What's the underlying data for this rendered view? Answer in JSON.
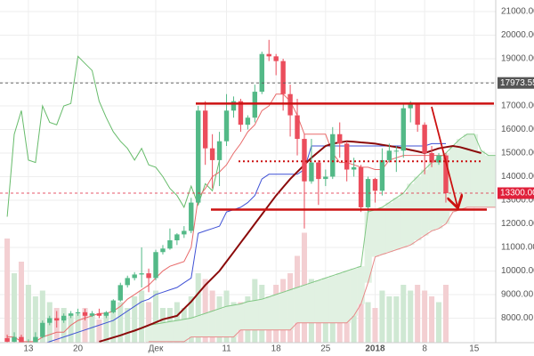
{
  "chart_data": {
    "type": "candlestick",
    "categories": [
      null,
      null,
      null,
      "13",
      null,
      null,
      null,
      null,
      null,
      null,
      "20",
      null,
      null,
      null,
      null,
      null,
      null,
      null,
      null,
      null,
      null,
      "Дек",
      null,
      null,
      null,
      null,
      null,
      null,
      null,
      null,
      null,
      "11",
      null,
      null,
      null,
      null,
      null,
      null,
      "18",
      null,
      null,
      null,
      null,
      null,
      null,
      "25",
      null,
      null,
      null,
      null,
      null,
      null,
      "2018",
      null,
      null,
      null,
      null,
      null,
      null,
      "8",
      null,
      null,
      null,
      null,
      null,
      null,
      "15",
      null,
      null,
      null
    ],
    "open": [
      7150,
      7000,
      7200,
      6500,
      6900,
      7200,
      7800,
      8000,
      7900,
      8100,
      8200,
      8250,
      8100,
      8200,
      8100,
      8250,
      8750,
      9400,
      9700,
      9850,
      9900,
      9700,
      10800,
      10950,
      11300,
      11550,
      11700,
      12900,
      16800,
      15200,
      14700,
      15500,
      16800,
      17200,
      16200,
      16500,
      17600,
      19200,
      19100,
      18900,
      17500,
      16600,
      15600,
      13800,
      14600,
      13900,
      14000,
      15800,
      15400,
      14300,
      14400,
      12700,
      13900,
      13400,
      14700,
      15100,
      15100,
      16900,
      17100,
      16200,
      15000,
      14600,
      14900,
      null,
      null,
      null,
      null,
      null,
      null,
      null
    ],
    "high": [
      7300,
      7400,
      7300,
      7100,
      7400,
      7900,
      8100,
      8300,
      8200,
      8300,
      8400,
      8400,
      8300,
      8400,
      8300,
      8800,
      9500,
      9800,
      9950,
      11000,
      10100,
      10900,
      11100,
      11800,
      11600,
      11900,
      13100,
      17000,
      17200,
      15800,
      15900,
      17500,
      17400,
      17300,
      16600,
      17900,
      19300,
      19800,
      19200,
      19000,
      17900,
      17300,
      15800,
      15600,
      14700,
      14300,
      16100,
      16300,
      15500,
      14800,
      14500,
      14000,
      13950,
      15200,
      15400,
      15300,
      17100,
      17200,
      17100,
      16300,
      15300,
      15000,
      15000,
      null,
      null,
      null,
      null,
      null,
      null,
      null
    ],
    "low": [
      6900,
      6800,
      6000,
      6400,
      6800,
      7150,
      7700,
      7600,
      7800,
      8000,
      8100,
      7900,
      8050,
      8000,
      8000,
      8200,
      8700,
      9300,
      9600,
      9300,
      9100,
      9600,
      10700,
      10900,
      11100,
      11400,
      11600,
      12800,
      14500,
      13500,
      13600,
      15300,
      16500,
      15900,
      16000,
      16300,
      17500,
      18900,
      18300,
      16800,
      15700,
      14900,
      11800,
      13700,
      12800,
      13600,
      13900,
      14800,
      13800,
      14000,
      12500,
      12500,
      12900,
      13200,
      14600,
      14200,
      14800,
      16300,
      15900,
      14100,
      14400,
      14500,
      12900,
      null,
      null,
      null,
      null,
      null,
      null,
      null
    ],
    "close": [
      7000,
      7200,
      6500,
      6900,
      7200,
      7800,
      8000,
      7900,
      8100,
      8200,
      8250,
      8100,
      8200,
      8100,
      8250,
      8750,
      9400,
      9700,
      9850,
      9900,
      9700,
      10800,
      10950,
      11300,
      11550,
      11700,
      12900,
      16800,
      15200,
      14700,
      15500,
      16800,
      17200,
      16200,
      16500,
      17600,
      19200,
      19100,
      18900,
      17500,
      16600,
      15600,
      13800,
      14600,
      13900,
      14000,
      15800,
      15400,
      14300,
      14400,
      12700,
      13900,
      13400,
      14700,
      15100,
      15100,
      16900,
      17100,
      16200,
      15000,
      14600,
      14900,
      13300,
      null,
      null,
      null,
      null,
      null,
      null,
      null
    ],
    "up_color": "#53b987",
    "down_color": "#eb4d5c",
    "volume": {
      "lim": [
        0,
        100
      ],
      "up_color": "#cfe8d3",
      "down_color": "#f3cfd2",
      "values": [
        90,
        60,
        70,
        50,
        40,
        45,
        35,
        30,
        30,
        25,
        25,
        30,
        25,
        20,
        25,
        30,
        35,
        30,
        40,
        45,
        35,
        45,
        30,
        30,
        35,
        30,
        40,
        60,
        55,
        45,
        40,
        45,
        35,
        35,
        40,
        55,
        50,
        40,
        50,
        55,
        60,
        75,
        95,
        55,
        45,
        40,
        50,
        45,
        50,
        55,
        45,
        35,
        30,
        45,
        40,
        40,
        50,
        45,
        50,
        45,
        40,
        35,
        50,
        null,
        null,
        null,
        null,
        null,
        null,
        null
      ]
    },
    "cloud": {
      "fill_up": "#e1f1e2",
      "fill_down": "#f7e1e1",
      "a": {
        "color": "#81c784",
        "values": [
          null,
          null,
          null,
          null,
          null,
          null,
          null,
          null,
          null,
          null,
          null,
          null,
          null,
          null,
          null,
          null,
          null,
          null,
          null,
          null,
          7700,
          7750,
          7800,
          7850,
          7900,
          7950,
          8000,
          8100,
          8200,
          8300,
          8400,
          8500,
          8550,
          8600,
          8700,
          8750,
          8800,
          8900,
          9000,
          9100,
          9200,
          9300,
          9400,
          9500,
          9600,
          9700,
          9800,
          9900,
          10000,
          10100,
          10200,
          12500,
          12600,
          12700,
          12900,
          13100,
          13300,
          13700,
          14000,
          14300,
          14600,
          14800,
          15000,
          15300,
          15600,
          15800,
          15800,
          15100,
          14900,
          14900
        ]
      },
      "b": {
        "color": "#e88a8a",
        "values": [
          null,
          null,
          null,
          null,
          null,
          null,
          null,
          null,
          null,
          null,
          null,
          null,
          null,
          null,
          null,
          null,
          null,
          null,
          null,
          null,
          7000,
          7000,
          7000,
          7000,
          7000,
          7000,
          7200,
          7200,
          7200,
          7200,
          7200,
          7200,
          7200,
          7500,
          7500,
          7500,
          7500,
          7500,
          7500,
          7500,
          7500,
          7800,
          7800,
          7800,
          7800,
          7800,
          7800,
          7800,
          7800,
          8100,
          8600,
          9500,
          10600,
          10700,
          10800,
          10900,
          11000,
          11100,
          11300,
          11500,
          11700,
          11800,
          12000,
          12500,
          12600,
          12700,
          12700,
          12700,
          12700,
          12700
        ]
      }
    },
    "lines": [
      {
        "color": "#66bb6a",
        "values": [
          12300,
          15800,
          16800,
          14700,
          14600,
          17000,
          16300,
          16200,
          17000,
          17100,
          19100,
          18800,
          18500,
          17200,
          16500,
          15900,
          15500,
          15200,
          14700,
          15200,
          14500,
          14400,
          14000,
          13500,
          13200,
          12700,
          13600,
          12800,
          13700,
          13400,
          14700,
          null,
          null,
          null,
          null,
          null,
          null,
          null,
          null,
          null,
          null,
          null,
          null,
          null,
          null,
          null,
          null,
          null,
          null,
          null,
          null,
          null,
          null,
          null,
          null,
          null,
          null,
          null,
          null,
          null,
          null,
          null,
          null,
          null,
          null,
          null,
          null,
          null,
          null,
          null
        ]
      },
      {
        "color": "#3f51d5",
        "values": [
          6900,
          6900,
          6900,
          6900,
          6900,
          6900,
          7000,
          7100,
          7200,
          7300,
          7400,
          7500,
          7600,
          7700,
          7800,
          7900,
          8100,
          8300,
          8500,
          8700,
          8800,
          9000,
          9100,
          9200,
          9300,
          9500,
          9700,
          11600,
          11700,
          11800,
          11900,
          12500,
          12600,
          12700,
          12900,
          13200,
          13900,
          14100,
          14100,
          14100,
          14100,
          14100,
          14300,
          15300,
          15300,
          15300,
          15300,
          15300,
          15300,
          15300,
          15300,
          15300,
          15300,
          15300,
          15300,
          15300,
          15300,
          15300,
          15300,
          15300,
          15400,
          15400,
          15400,
          null,
          null,
          null,
          null,
          null,
          null,
          null
        ]
      },
      {
        "color": "#e86a6a",
        "values": [
          7200,
          7200,
          7000,
          7000,
          7000,
          7200,
          7300,
          7400,
          7400,
          7700,
          7900,
          8000,
          8100,
          8200,
          8200,
          8300,
          8500,
          8800,
          9000,
          9200,
          9400,
          9700,
          10000,
          10200,
          10300,
          10400,
          11000,
          13100,
          13500,
          14000,
          14200,
          14500,
          15000,
          15400,
          15900,
          16200,
          16800,
          17000,
          17500,
          17500,
          17200,
          16600,
          15800,
          15800,
          15800,
          15800,
          15000,
          14600,
          14600,
          14500,
          14400,
          14400,
          14300,
          14300,
          14700,
          14800,
          14900,
          14900,
          14900,
          14900,
          14900,
          14900,
          14900,
          null,
          null,
          null,
          null,
          null,
          null,
          null
        ]
      },
      {
        "color": "#8b0a0a",
        "values": [
          null,
          null,
          null,
          null,
          null,
          null,
          null,
          null,
          null,
          null,
          null,
          null,
          null,
          7000,
          7090,
          7180,
          7270,
          7370,
          7470,
          7580,
          7700,
          7820,
          7950,
          8020,
          8100,
          8400,
          8700,
          9050,
          9400,
          9700,
          10000,
          10400,
          10800,
          11200,
          11600,
          12000,
          12400,
          12800,
          13200,
          13550,
          13900,
          14200,
          14500,
          14800,
          15050,
          15300,
          15400,
          15450,
          15500,
          15480,
          15450,
          15430,
          15400,
          15350,
          15300,
          15250,
          15200,
          15130,
          15070,
          15000,
          15100,
          15200,
          15250,
          15300,
          15250,
          15170,
          15080,
          15000,
          null,
          null
        ]
      }
    ],
    "levels": [
      {
        "value": 17100,
        "style": "solid",
        "color": "#cc1111"
      },
      {
        "value": 12600,
        "style": "solid",
        "color": "#cc1111"
      },
      {
        "value": 14650,
        "style": "dotted",
        "color": "#cc1111"
      }
    ],
    "price_marks": [
      {
        "value": 17973.55,
        "label": "17973.55",
        "color": "#555555"
      },
      {
        "value": 13300,
        "label": "13300.00",
        "color": "#e0203a"
      }
    ],
    "ylim": [
      6960,
      21490
    ],
    "yticks": [
      {
        "value": 8000,
        "label": "8000.00"
      },
      {
        "value": 9000,
        "label": "9000.00"
      },
      {
        "value": 10000,
        "label": "10000.00"
      },
      {
        "value": 11000,
        "label": "11000.00"
      },
      {
        "value": 12000,
        "label": "12000.00"
      },
      {
        "value": 13000,
        "label": "13000.00"
      },
      {
        "value": 14000,
        "label": "14000.00"
      },
      {
        "value": 15000,
        "label": "15000.00"
      },
      {
        "value": 16000,
        "label": "16000.00"
      },
      {
        "value": 17000,
        "label": "17000.00"
      },
      {
        "value": 18000,
        "label": "18000.00"
      },
      {
        "value": 19000,
        "label": "19000.00"
      },
      {
        "value": 20000,
        "label": "20000.00"
      },
      {
        "value": 21000,
        "label": "21000.00"
      }
    ],
    "grid": true
  }
}
